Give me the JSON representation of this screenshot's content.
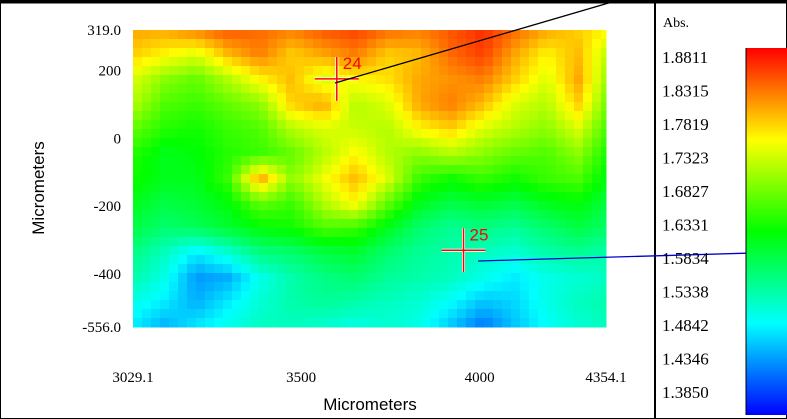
{
  "chart_data": {
    "type": "heatmap",
    "title": "",
    "xlabel": "Micrometers",
    "ylabel": "Micrometers",
    "xlim": [
      3029.1,
      4354.1
    ],
    "ylim": [
      -556.0,
      319.0
    ],
    "x_tick_labels": [
      {
        "value": 3029.1,
        "label": "3029.1"
      },
      {
        "value": 3500,
        "label": "3500"
      },
      {
        "value": 4000,
        "label": "4000"
      },
      {
        "value": 4354.1,
        "label": "4354.1"
      }
    ],
    "y_tick_labels": [
      {
        "value": 319.0,
        "label": "319.0"
      },
      {
        "value": 200,
        "label": "200"
      },
      {
        "value": 0,
        "label": "0"
      },
      {
        "value": -200,
        "label": "-200"
      },
      {
        "value": -400,
        "label": "-400"
      },
      {
        "value": -556.0,
        "label": "-556.0"
      }
    ],
    "colorbar": {
      "unit_label": "Abs.",
      "min": 1.385,
      "max": 1.8811,
      "levels": [
        "1.8811",
        "1.8315",
        "1.7819",
        "1.7323",
        "1.6827",
        "1.6331",
        "1.5834",
        "1.5338",
        "1.4842",
        "1.4346",
        "1.3850"
      ],
      "colormap": [
        "#0000ff",
        "#00ffff",
        "#00ff00",
        "#ffff00",
        "#ff0000"
      ]
    },
    "markers": [
      {
        "label": "24",
        "x": 3600,
        "y": 175,
        "color": "#ff0000"
      },
      {
        "label": "25",
        "x": 3955,
        "y": 330,
        "color": "#ff0000"
      }
    ],
    "markers_note_y_sign": "negative",
    "value_field": [
      [
        1.8,
        1.8,
        1.82,
        1.84,
        1.83,
        1.82,
        1.84,
        1.85,
        1.83,
        1.82,
        1.84,
        1.86,
        1.83,
        1.8,
        1.78,
        1.76
      ],
      [
        1.78,
        1.76,
        1.74,
        1.79,
        1.82,
        1.78,
        1.8,
        1.82,
        1.78,
        1.79,
        1.83,
        1.85,
        1.8,
        1.76,
        1.79,
        1.72
      ],
      [
        1.74,
        1.7,
        1.68,
        1.72,
        1.76,
        1.79,
        1.74,
        1.76,
        1.77,
        1.8,
        1.81,
        1.82,
        1.78,
        1.74,
        1.8,
        1.7
      ],
      [
        1.72,
        1.67,
        1.66,
        1.68,
        1.7,
        1.78,
        1.8,
        1.72,
        1.74,
        1.8,
        1.82,
        1.79,
        1.74,
        1.72,
        1.78,
        1.68
      ],
      [
        1.68,
        1.65,
        1.64,
        1.66,
        1.67,
        1.72,
        1.74,
        1.73,
        1.72,
        1.76,
        1.78,
        1.74,
        1.72,
        1.7,
        1.74,
        1.66
      ],
      [
        1.65,
        1.62,
        1.63,
        1.65,
        1.66,
        1.68,
        1.72,
        1.76,
        1.72,
        1.7,
        1.72,
        1.7,
        1.68,
        1.67,
        1.7,
        1.64
      ],
      [
        1.64,
        1.62,
        1.62,
        1.66,
        1.8,
        1.7,
        1.75,
        1.79,
        1.74,
        1.66,
        1.64,
        1.66,
        1.64,
        1.66,
        1.67,
        1.62
      ],
      [
        1.62,
        1.6,
        1.61,
        1.63,
        1.68,
        1.66,
        1.72,
        1.76,
        1.68,
        1.62,
        1.6,
        1.61,
        1.6,
        1.62,
        1.63,
        1.6
      ],
      [
        1.6,
        1.58,
        1.59,
        1.61,
        1.63,
        1.64,
        1.67,
        1.66,
        1.62,
        1.58,
        1.56,
        1.57,
        1.56,
        1.58,
        1.6,
        1.58
      ],
      [
        1.57,
        1.54,
        1.5,
        1.53,
        1.57,
        1.58,
        1.6,
        1.61,
        1.58,
        1.56,
        1.55,
        1.54,
        1.53,
        1.55,
        1.56,
        1.55
      ],
      [
        1.55,
        1.52,
        1.46,
        1.47,
        1.52,
        1.55,
        1.57,
        1.58,
        1.56,
        1.55,
        1.54,
        1.52,
        1.5,
        1.52,
        1.53,
        1.54
      ],
      [
        1.52,
        1.5,
        1.47,
        1.5,
        1.53,
        1.55,
        1.56,
        1.55,
        1.54,
        1.53,
        1.51,
        1.48,
        1.49,
        1.52,
        1.54,
        1.55
      ],
      [
        1.5,
        1.47,
        1.5,
        1.52,
        1.54,
        1.54,
        1.53,
        1.52,
        1.53,
        1.52,
        1.48,
        1.44,
        1.48,
        1.51,
        1.53,
        1.54
      ]
    ]
  }
}
